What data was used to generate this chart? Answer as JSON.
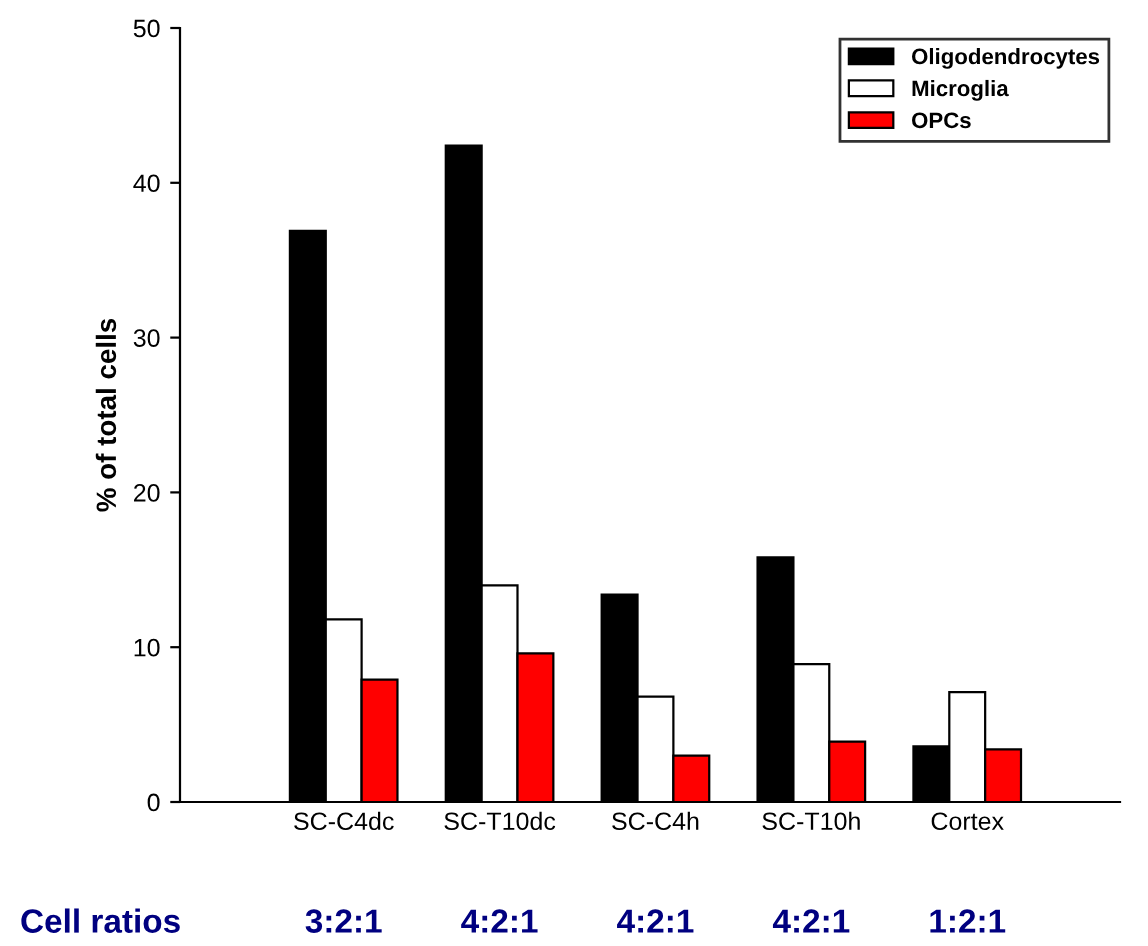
{
  "chart_data": {
    "type": "bar",
    "ylabel": "% of total cells",
    "categories": [
      "SC-C4dc",
      "SC-T10dc",
      "SC-C4h",
      "SC-T10h",
      "Cortex"
    ],
    "series": [
      {
        "name": "Oligodendrocytes",
        "color": "#000000",
        "values": [
          36.9,
          42.4,
          13.4,
          15.8,
          3.6
        ]
      },
      {
        "name": "Microglia",
        "color": "#ffffff",
        "values": [
          11.8,
          14.0,
          6.8,
          8.9,
          7.1
        ]
      },
      {
        "name": "OPCs",
        "color": "#ff0000",
        "values": [
          7.9,
          9.6,
          3.0,
          3.9,
          3.4
        ]
      }
    ],
    "ylim": [
      0,
      50
    ],
    "yticks": [
      0,
      10,
      20,
      30,
      40,
      50
    ],
    "grid": false,
    "legend": "top right",
    "annotations": [
      "Cell ratios",
      "3:2:1",
      "4:2:1",
      "4:2:1",
      "4:2:1",
      "1:2:1"
    ]
  }
}
